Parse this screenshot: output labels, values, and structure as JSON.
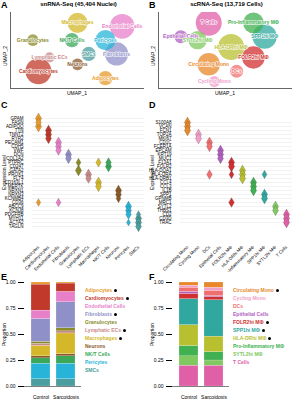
{
  "chart_data": [
    {
      "panel": "A",
      "type": "bubble",
      "title": "snRNA-Seq (45,404 Nuclei)",
      "x_label": "UMAP_1",
      "y_label": "UMAP_2",
      "xlim": [
        -12,
        12
      ],
      "ylim": [
        -11,
        11
      ],
      "tick_labels": false,
      "categories": [
        "Macrophages",
        "Endothelial Cells",
        "Granulocytes",
        "NK/T Cells",
        "Pericytes",
        "SMCs",
        "Fibroblasts",
        "Lymphatic ECs",
        "Neurons",
        "Cardiomyocytes",
        "Adipocytes"
      ],
      "x": [
        0,
        8,
        -8,
        -1,
        5,
        2,
        7,
        -5,
        0,
        -7,
        5
      ],
      "y": [
        8,
        7,
        3,
        3,
        3,
        -1,
        -1,
        -2,
        -4,
        -6,
        -8
      ],
      "sizes": [
        6,
        9,
        2,
        3,
        6,
        3,
        8,
        1.5,
        2,
        10,
        3
      ],
      "colors": [
        "#d4b82a",
        "#e87fc9",
        "#8a8a2a",
        "#3aa858",
        "#28b4d8",
        "#4a9e9e",
        "#9090c8",
        "#c98a8a",
        "#8b5a2b",
        "#c0392b",
        "#e89a2a"
      ]
    },
    {
      "panel": "B",
      "type": "bubble",
      "title": "scRNA-Seq (13,719 Cells)",
      "x_label": "UMAP_1",
      "y_label": "UMAP_2",
      "xlim": [
        -12,
        12
      ],
      "ylim": [
        -11,
        11
      ],
      "tick_labels": false,
      "categories": [
        "Epithelial Cells",
        "T Cells",
        "Pro-Inflammatory MΦ",
        "SYTL2hi MΦ",
        "HLA-DRhi MΦ",
        "SPP1hi MΦ",
        "FOLR2hi MΦ",
        "Circulating Mono",
        "DCs",
        "Cycling Mono"
      ],
      "x": [
        -8,
        -3,
        5,
        -5,
        1,
        7,
        5,
        -3,
        2,
        -2
      ],
      "y": [
        4,
        8,
        8,
        3,
        1,
        4,
        -2,
        -4,
        -6,
        -9
      ],
      "sizes": [
        2,
        8,
        5,
        4,
        8,
        7,
        6,
        6,
        2,
        1.5
      ],
      "colors": [
        "#b060c0",
        "#e060a8",
        "#40b050",
        "#80c860",
        "#b8c030",
        "#30a8a0",
        "#d03030",
        "#e8882a",
        "#f07070",
        "#f0a0c8"
      ]
    },
    {
      "panel": "C",
      "type": "violin",
      "y_label": "Expression Level",
      "columns": [
        "Adipocytes",
        "Cardiomyocytes",
        "Endothelial Cells",
        "Fibroblasts",
        "Granulocytes",
        "Lymphatic ECs",
        "Macrophages",
        "NK/T Cells",
        "Neurons",
        "Pericytes",
        "SMCs"
      ],
      "colors": [
        "#e89a2a",
        "#c0392b",
        "#e87fc9",
        "#9090c8",
        "#8a8a2a",
        "#c98a8a",
        "#d4b82a",
        "#3aa858",
        "#8b5a2b",
        "#28b4d8",
        "#4a9e9e"
      ],
      "genes": [
        "GPAM",
        "FASN",
        "ADIPOQ",
        "TTN",
        "TNNT2",
        "RYR2",
        "PECAM1",
        "CDH5",
        "VWF",
        "DCN",
        "COL1A2",
        "PTPRC",
        "CD247",
        "GATA2",
        "PROX1",
        "FLT4",
        "CD163L1",
        "MERTK",
        "NRXN1",
        "NRXN3",
        "KCNMB4",
        "CD36",
        "ABCC9",
        "KCNJ8",
        "PDGFRB",
        "MYH11",
        "ACTA2",
        "TAGLN"
      ],
      "cells": [
        [
          "GPAM",
          "Adipocytes",
          1
        ],
        [
          "FASN",
          "Adipocytes",
          0.8
        ],
        [
          "ADIPOQ",
          "Adipocytes",
          1
        ],
        [
          "TTN",
          "Cardiomyocytes",
          1
        ],
        [
          "TNNT2",
          "Cardiomyocytes",
          1
        ],
        [
          "RYR2",
          "Cardiomyocytes",
          0.9
        ],
        [
          "PECAM1",
          "Endothelial Cells",
          1
        ],
        [
          "CDH5",
          "Endothelial Cells",
          0.9
        ],
        [
          "VWF",
          "Endothelial Cells",
          0.8
        ],
        [
          "DCN",
          "Fibroblasts",
          1
        ],
        [
          "COL1A2",
          "Fibroblasts",
          0.9
        ],
        [
          "PTPRC",
          "Granulocytes",
          0.6
        ],
        [
          "PTPRC",
          "Macrophages",
          0.7
        ],
        [
          "PTPRC",
          "NK/T Cells",
          0.8
        ],
        [
          "CD247",
          "NK/T Cells",
          1
        ],
        [
          "GATA2",
          "Granulocytes",
          1
        ],
        [
          "PROX1",
          "Lymphatic ECs",
          1
        ],
        [
          "FLT4",
          "Lymphatic ECs",
          0.8
        ],
        [
          "CD163L1",
          "Macrophages",
          1
        ],
        [
          "MERTK",
          "Macrophages",
          0.9
        ],
        [
          "NRXN1",
          "Neurons",
          1
        ],
        [
          "NRXN3",
          "Neurons",
          0.9
        ],
        [
          "KCNMB4",
          "Neurons",
          0.6
        ],
        [
          "CD36",
          "Adipocytes",
          0.5
        ],
        [
          "CD36",
          "Endothelial Cells",
          0.6
        ],
        [
          "ABCC9",
          "Pericytes",
          1
        ],
        [
          "KCNJ8",
          "Pericytes",
          0.9
        ],
        [
          "PDGFRB",
          "Pericytes",
          0.8
        ],
        [
          "PDGFRB",
          "SMCs",
          0.5
        ],
        [
          "MYH11",
          "SMCs",
          1
        ],
        [
          "ACTA2",
          "SMCs",
          1
        ],
        [
          "ACTA2",
          "Pericytes",
          0.4
        ],
        [
          "TAGLN",
          "SMCs",
          0.9
        ]
      ]
    },
    {
      "panel": "D",
      "type": "violin",
      "y_label": "Expression Level",
      "columns": [
        "Circulating Mono",
        "Cycling Mono",
        "DCs",
        "Epithelial Cells",
        "FOLR2hi MΦ",
        "HLA-DRhi MΦ",
        "Pro-Inflammatory MΦ",
        "SPP1hi MΦ",
        "SYTL2hi MΦ",
        "T Cells"
      ],
      "colors": [
        "#e8882a",
        "#f0a0c8",
        "#f07070",
        "#b060c0",
        "#d03030",
        "#b8c030",
        "#40b050",
        "#30a8a0",
        "#80c860",
        "#e060a8"
      ],
      "genes": [
        "S100A8",
        "VCAN",
        "FCN1",
        "TOP2A",
        "MKI67",
        "CD1C",
        "FCER1A",
        "EPCAM",
        "KRT19",
        "MUC1",
        "F13A1",
        "FOLR2",
        "HLA-DQA1",
        "HLA-DRA",
        "HLA-DRB1",
        "CCL4",
        "CCL3",
        "IL1B",
        "SPP1",
        "GPNMB",
        "MRC1",
        "SYTL2",
        "THBS1",
        "CD2",
        "CD3D",
        "TRAC"
      ],
      "cells": [
        [
          "S100A8",
          "Circulating Mono",
          1
        ],
        [
          "VCAN",
          "Circulating Mono",
          1
        ],
        [
          "FCN1",
          "Circulating Mono",
          1
        ],
        [
          "TOP2A",
          "Cycling Mono",
          1
        ],
        [
          "MKI67",
          "Cycling Mono",
          1
        ],
        [
          "CD1C",
          "DCs",
          1
        ],
        [
          "FCER1A",
          "DCs",
          0.9
        ],
        [
          "HLA-DRA",
          "DCs",
          0.8
        ],
        [
          "EPCAM",
          "Epithelial Cells",
          1
        ],
        [
          "KRT19",
          "Epithelial Cells",
          1
        ],
        [
          "MUC1",
          "Epithelial Cells",
          0.9
        ],
        [
          "F13A1",
          "FOLR2hi MΦ",
          1
        ],
        [
          "FOLR2",
          "FOLR2hi MΦ",
          1
        ],
        [
          "MRC1",
          "FOLR2hi MΦ",
          0.8
        ],
        [
          "HLA-DRA",
          "FOLR2hi MΦ",
          0.6
        ],
        [
          "HLA-DQA1",
          "HLA-DRhi MΦ",
          1
        ],
        [
          "HLA-DRA",
          "HLA-DRhi MΦ",
          1
        ],
        [
          "HLA-DRB1",
          "HLA-DRhi MΦ",
          1
        ],
        [
          "CCL4",
          "Pro-Inflammatory MΦ",
          1
        ],
        [
          "CCL3",
          "Pro-Inflammatory MΦ",
          1
        ],
        [
          "IL1B",
          "Pro-Inflammatory MΦ",
          1
        ],
        [
          "SPP1",
          "SPP1hi MΦ",
          1
        ],
        [
          "GPNMB",
          "SPP1hi MΦ",
          1
        ],
        [
          "HLA-DRA",
          "SPP1hi MΦ",
          0.6
        ],
        [
          "SYTL2",
          "SYTL2hi MΦ",
          1
        ],
        [
          "THBS1",
          "SYTL2hi MΦ",
          0.9
        ],
        [
          "CD2",
          "T Cells",
          1
        ],
        [
          "CD3D",
          "T Cells",
          1
        ],
        [
          "TRAC",
          "T Cells",
          1
        ]
      ]
    },
    {
      "panel": "E",
      "type": "bar",
      "stacked": true,
      "legend": "right",
      "y_label": "Proportion",
      "categories": [
        "Control",
        "Sarcoidosis"
      ],
      "ylim": [
        0,
        1
      ],
      "yticks": [
        {
          "value": 0,
          "label": "0.00"
        },
        {
          "value": 0.25,
          "label": "0.25"
        },
        {
          "value": 0.5,
          "label": "0.50"
        },
        {
          "value": 0.75,
          "label": "0.75"
        },
        {
          "value": 1,
          "label": "1.00"
        }
      ],
      "series": [
        {
          "name": "Adipocytes",
          "color": "#e89a2a",
          "values": [
            0.02,
            0.01
          ],
          "significant": true
        },
        {
          "name": "Cardiomyocytes",
          "color": "#c0392b",
          "values": [
            0.25,
            0.08
          ],
          "significant": true
        },
        {
          "name": "Endothelial Cells",
          "color": "#e87fc9",
          "values": [
            0.08,
            0.1
          ],
          "significant": false
        },
        {
          "name": "Fibroblasts",
          "color": "#9090c8",
          "values": [
            0.22,
            0.25
          ],
          "significant": true
        },
        {
          "name": "Granulocytes",
          "color": "#8a8a2a",
          "values": [
            0.02,
            0.03
          ],
          "significant": false
        },
        {
          "name": "Lymphatic ECs",
          "color": "#c98a8a",
          "values": [
            0.02,
            0.02
          ],
          "significant": true
        },
        {
          "name": "Macrophages",
          "color": "#d4b82a",
          "values": [
            0.1,
            0.2
          ],
          "significant": true
        },
        {
          "name": "Neurons",
          "color": "#8b5a2b",
          "values": [
            0.02,
            0.02
          ],
          "significant": false
        },
        {
          "name": "NK/T Cells",
          "color": "#3aa858",
          "values": [
            0.05,
            0.07
          ],
          "significant": false
        },
        {
          "name": "Pericytes",
          "color": "#28b4d8",
          "values": [
            0.15,
            0.15
          ],
          "significant": false
        },
        {
          "name": "SMCs",
          "color": "#4a9e9e",
          "values": [
            0.07,
            0.07
          ],
          "significant": false
        }
      ]
    },
    {
      "panel": "F",
      "type": "bar",
      "stacked": true,
      "legend": "right",
      "y_label": "Proportion",
      "categories": [
        "Control",
        "Sarcoidosis"
      ],
      "ylim": [
        0,
        1
      ],
      "yticks": [
        {
          "value": 0,
          "label": "0.00"
        },
        {
          "value": 0.25,
          "label": "0.25"
        },
        {
          "value": 0.5,
          "label": "0.50"
        },
        {
          "value": 0.75,
          "label": "0.75"
        },
        {
          "value": 1,
          "label": "1.00"
        }
      ],
      "series": [
        {
          "name": "Circulating Mono",
          "color": "#e8882a",
          "values": [
            0.03,
            0.05
          ],
          "significant": true
        },
        {
          "name": "Cycling Mono",
          "color": "#f0a0c8",
          "values": [
            0.02,
            0.03
          ],
          "significant": false
        },
        {
          "name": "DCs",
          "color": "#f07070",
          "values": [
            0.04,
            0.05
          ],
          "significant": false
        },
        {
          "name": "Epithelial Cells",
          "color": "#b060c0",
          "values": [
            0.02,
            0.01
          ],
          "significant": false
        },
        {
          "name": "FOLR2hi MΦ",
          "color": "#d03030",
          "values": [
            0.05,
            0.03
          ],
          "significant": true
        },
        {
          "name": "SPP1hi MΦ",
          "color": "#30a8a0",
          "values": [
            0.25,
            0.35
          ],
          "significant": true
        },
        {
          "name": "HLA-DRhi MΦ",
          "color": "#b8c030",
          "values": [
            0.2,
            0.15
          ],
          "significant": true
        },
        {
          "name": "Pro-Inflammatory MΦ",
          "color": "#40b050",
          "values": [
            0.1,
            0.08
          ],
          "significant": false
        },
        {
          "name": "SYTL2hi MΦ",
          "color": "#80c860",
          "values": [
            0.09,
            0.05
          ],
          "significant": false
        },
        {
          "name": "T Cells",
          "color": "#e060a8",
          "values": [
            0.2,
            0.2
          ],
          "significant": false
        }
      ]
    }
  ]
}
